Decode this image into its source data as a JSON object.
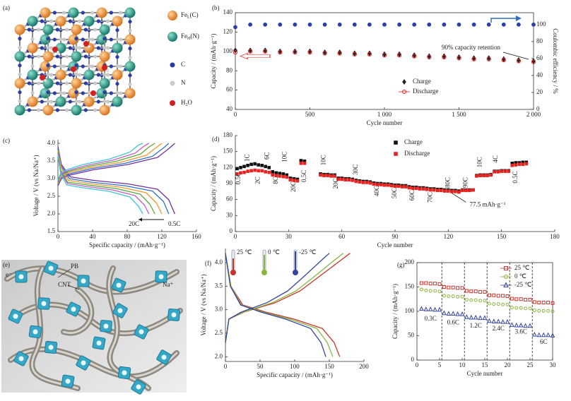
{
  "panels": [
    {
      "label": "(a)",
      "legend": [
        {
          "text": "Fe",
          "sub": "L",
          "after": "(C)"
        },
        {
          "text": "Fe",
          "sub": "H",
          "after": "(N)"
        },
        {
          "text": "C"
        },
        {
          "text": "N"
        },
        {
          "text": "H",
          "sub": "2",
          "after": "O"
        }
      ]
    },
    {
      "label": "(e)",
      "labels": [
        "PB",
        "CNT",
        "e⁻",
        "Na⁺"
      ]
    }
  ],
  "chart_data": [
    {
      "panel": "(b)",
      "type": "scatter",
      "x_label": "Cycle number",
      "y_label": "Capacity / (mAh·g⁻¹)",
      "y2_label": "Coulombic efficiency / %",
      "x": [
        0,
        100,
        200,
        300,
        400,
        500,
        600,
        700,
        800,
        900,
        1000,
        1100,
        1200,
        1300,
        1400,
        1500,
        1600,
        1700,
        1800,
        1900,
        2000
      ],
      "xlim": [
        0,
        2000
      ],
      "xticks": [
        0,
        500,
        {
          "value": 1000,
          "label": "1 000"
        },
        {
          "value": 1500,
          "label": "1 500"
        },
        {
          "value": 2000,
          "label": "2 000"
        }
      ],
      "ylim": [
        40,
        140
      ],
      "yticks": [
        40,
        60,
        80,
        100,
        120,
        140
      ],
      "y2lim": [
        0,
        114
      ],
      "y2ticks": [
        0,
        20,
        40,
        60,
        80,
        100
      ],
      "series": [
        {
          "name": "Charge",
          "color": "#222222",
          "marker": "diamond",
          "values": [
            101,
            101,
            101,
            100,
            100,
            100,
            99,
            99,
            98,
            98,
            97,
            97,
            96,
            95,
            95,
            94,
            93,
            93,
            92,
            91,
            90
          ]
        },
        {
          "name": "Discharge",
          "color": "#e8231f",
          "marker": "circle",
          "open": true,
          "values": [
            99,
            100,
            100,
            99,
            99,
            99,
            98,
            98,
            97,
            97,
            96,
            96,
            95,
            94,
            94,
            93,
            92,
            92,
            91,
            90,
            89
          ]
        },
        {
          "color": "#2c3fa8",
          "marker": "circle",
          "axis": "y2",
          "values": [
            97,
            100,
            100,
            100,
            100,
            100,
            100,
            100,
            100,
            100,
            100,
            100,
            100,
            100,
            100,
            100,
            100,
            100,
            100,
            100,
            100
          ]
        }
      ],
      "annotation": "90% capacity retention"
    },
    {
      "panel": "(c)",
      "type": "line",
      "x_label": "Specific capacity / (mAh·g⁻¹)",
      "y_label": "Voltage / V (vs Na/Na⁺)",
      "xlim": [
        0,
        160
      ],
      "xticks": [
        0,
        40,
        80,
        120,
        160
      ],
      "ylim": [
        1.5,
        4.1
      ],
      "yticks": [
        1.5,
        {
          "value": 2,
          "label": "2.0"
        },
        2.5,
        {
          "value": 3,
          "label": "3.0"
        },
        3.5,
        {
          "value": 4,
          "label": "4.0"
        }
      ],
      "series": [
        {
          "color": "#7030a0",
          "x": [
            0,
            4,
            14,
            41,
            81,
            115,
            128,
            135
          ],
          "values": [
            3.9,
            3.4,
            3.05,
            2.95,
            2.85,
            2.7,
            2.4,
            2.0
          ]
        },
        {
          "color": "#7030a0",
          "x": [
            0,
            4,
            14,
            41,
            81,
            115,
            128,
            135
          ],
          "values": [
            2.8,
            3.0,
            3.1,
            3.25,
            3.4,
            3.6,
            3.85,
            4.0
          ]
        },
        {
          "color": "#2f6fd0",
          "x": [
            0,
            4,
            13,
            38,
            77,
            109,
            122,
            128
          ],
          "values": [
            3.85,
            3.35,
            3.0,
            2.9,
            2.8,
            2.65,
            2.35,
            2.0
          ]
        },
        {
          "color": "#2f6fd0",
          "x": [
            0,
            4,
            13,
            38,
            77,
            109,
            122,
            128
          ],
          "values": [
            2.83,
            3.03,
            3.13,
            3.28,
            3.43,
            3.63,
            3.87,
            4.0
          ]
        },
        {
          "color": "#f0962c",
          "x": [
            0,
            4,
            12,
            36,
            72,
            102,
            114,
            120
          ],
          "values": [
            3.8,
            3.3,
            2.95,
            2.86,
            2.76,
            2.6,
            2.3,
            2.0
          ]
        },
        {
          "color": "#f0962c",
          "x": [
            0,
            4,
            12,
            36,
            72,
            102,
            114,
            120
          ],
          "values": [
            2.86,
            3.06,
            3.16,
            3.31,
            3.46,
            3.66,
            3.89,
            4.0
          ]
        },
        {
          "color": "#58a83a",
          "x": [
            0,
            3,
            11,
            34,
            67,
            95,
            106,
            112
          ],
          "values": [
            3.75,
            3.25,
            2.9,
            2.82,
            2.72,
            2.56,
            2.28,
            2.0
          ]
        },
        {
          "color": "#58a83a",
          "x": [
            0,
            3,
            11,
            34,
            67,
            95,
            106,
            112
          ],
          "values": [
            2.89,
            3.09,
            3.19,
            3.34,
            3.49,
            3.69,
            3.91,
            4.0
          ]
        },
        {
          "color": "#c25bc8",
          "x": [
            0,
            3,
            11,
            32,
            63,
            89,
            100,
            105
          ],
          "values": [
            3.7,
            3.2,
            2.86,
            2.78,
            2.68,
            2.52,
            2.25,
            2.0
          ]
        },
        {
          "color": "#c25bc8",
          "x": [
            0,
            3,
            11,
            32,
            63,
            89,
            100,
            105
          ],
          "values": [
            2.92,
            3.12,
            3.22,
            3.37,
            3.52,
            3.72,
            3.93,
            4.0
          ]
        },
        {
          "color": "#3cc8d8",
          "x": [
            0,
            3,
            10,
            29,
            59,
            83,
            93,
            98
          ],
          "values": [
            3.65,
            3.15,
            2.82,
            2.74,
            2.64,
            2.48,
            2.22,
            2.0
          ]
        },
        {
          "color": "#3cc8d8",
          "x": [
            0,
            3,
            10,
            29,
            59,
            83,
            93,
            98
          ],
          "values": [
            2.95,
            3.15,
            3.25,
            3.4,
            3.55,
            3.75,
            3.95,
            4.0
          ]
        }
      ],
      "annotations": [
        "20C",
        "0.5C"
      ]
    },
    {
      "panel": "(d)",
      "type": "scatter",
      "x_label": "Cycle number",
      "y_label": "Capacity / (mAh·g⁻¹)",
      "x": [
        1,
        3,
        5,
        7,
        9,
        11,
        13,
        15,
        17,
        19,
        21,
        23,
        25,
        27,
        29,
        31,
        33,
        35,
        37,
        39,
        48,
        50,
        52,
        54,
        56,
        58,
        60,
        62,
        64,
        66,
        68,
        70,
        72,
        74,
        76,
        78,
        80,
        82,
        84,
        86,
        88,
        90,
        92,
        94,
        96,
        98,
        100,
        102,
        104,
        106,
        108,
        110,
        112,
        114,
        116,
        118,
        120,
        122,
        124,
        126,
        128,
        130,
        132,
        134,
        136,
        138,
        140,
        142,
        144,
        146,
        148,
        150,
        152,
        154,
        156,
        158,
        160,
        162,
        164
      ],
      "xlim": [
        0,
        180
      ],
      "xticks": [
        0,
        30,
        60,
        90,
        120,
        150,
        180
      ],
      "ylim": [
        0,
        180
      ],
      "yticks": [
        0,
        30,
        60,
        90,
        120,
        150,
        180
      ],
      "series": [
        {
          "name": "Charge",
          "color": "#111111",
          "marker": "square",
          "values": [
            118,
            120,
            122,
            124,
            126,
            127,
            125,
            124,
            122,
            120,
            112,
            110,
            109,
            108,
            106,
            100,
            99,
            98,
            133,
            132,
            108,
            107,
            107,
            106,
            106,
            100,
            100,
            99,
            99,
            98,
            96,
            95,
            94,
            94,
            93,
            91,
            90,
            90,
            89,
            89,
            88,
            87,
            87,
            86,
            86,
            84,
            83,
            83,
            82,
            82,
            81,
            80,
            80,
            79,
            79,
            78,
            78,
            77,
            77,
            76,
            78,
            78,
            78,
            78,
            105,
            106,
            106,
            106,
            107,
            113,
            113,
            114,
            114,
            114,
            128,
            129,
            129,
            130,
            130
          ]
        },
        {
          "name": "Discharge",
          "color": "#e8231f",
          "marker": "square",
          "values": [
            108,
            110,
            111,
            113,
            114,
            115,
            114,
            114,
            112,
            111,
            106,
            105,
            104,
            103,
            102,
            97,
            96,
            95,
            128,
            128,
            106,
            105,
            105,
            104,
            104,
            98,
            98,
            97,
            97,
            96,
            94,
            93,
            92,
            92,
            91,
            89,
            88,
            88,
            87,
            87,
            86,
            85,
            85,
            84,
            84,
            82,
            81,
            81,
            80,
            80,
            79,
            78,
            78,
            77,
            77,
            76,
            76,
            75,
            75,
            74,
            77,
            77,
            77,
            78,
            104,
            105,
            105,
            105,
            106,
            112,
            112,
            113,
            113,
            113,
            124,
            125,
            126,
            126,
            127
          ]
        }
      ],
      "rate_labels": [
        "0.5C",
        "1C",
        "2C",
        "6C",
        "8C",
        "10C",
        "20C",
        "0.5C",
        "10C",
        "20C",
        "30C",
        "40C",
        "50C",
        "60C",
        "70C",
        "80C",
        "90C",
        "10C",
        "4C",
        "0.5C"
      ],
      "annotation": "77.5 mAh·g⁻¹"
    },
    {
      "panel": "(f)",
      "type": "line",
      "x_label": "Specific capacity / (mAh·g⁻¹)",
      "y_label": "Voltage / V (vs Na/Na⁺)",
      "xlim": [
        0,
        200
      ],
      "xticks": [
        0,
        50,
        100,
        150,
        200
      ],
      "ylim": [
        1.9,
        4.3
      ],
      "yticks": [
        {
          "value": 2,
          "label": "2.0"
        },
        2.5,
        {
          "value": 3,
          "label": "3.0"
        },
        3.5,
        {
          "value": 4,
          "label": "4.0"
        }
      ],
      "series": [
        {
          "name": "25 ℃",
          "color": "#c8342b",
          "x": [
            0,
            5,
            27,
            72,
            108,
            135,
            162,
            180
          ],
          "values": [
            2.3,
            2.8,
            2.95,
            3.15,
            3.4,
            3.7,
            4.0,
            4.2
          ]
        },
        {
          "color": "#c8342b",
          "x": [
            0,
            8,
            25,
            58,
            99,
            140,
            157,
            165
          ],
          "values": [
            4.2,
            3.5,
            3.1,
            2.95,
            2.8,
            2.6,
            2.3,
            2.0
          ]
        },
        {
          "name": "0 ℃",
          "color": "#8ab43c",
          "x": [
            0,
            5,
            26,
            68,
            102,
            128,
            153,
            170
          ],
          "values": [
            2.3,
            2.8,
            2.95,
            3.15,
            3.4,
            3.7,
            4.0,
            4.2
          ]
        },
        {
          "color": "#8ab43c",
          "x": [
            0,
            8,
            23,
            54,
            93,
            132,
            147,
            155
          ],
          "values": [
            4.2,
            3.5,
            3.1,
            2.95,
            2.8,
            2.6,
            2.3,
            2.0
          ]
        },
        {
          "name": "-25 ℃",
          "color": "#3445a0",
          "x": [
            0,
            5,
            23,
            60,
            90,
            113,
            135,
            150
          ],
          "values": [
            2.3,
            2.8,
            2.95,
            3.15,
            3.4,
            3.7,
            4.0,
            4.2
          ]
        },
        {
          "color": "#3445a0",
          "x": [
            0,
            7,
            22,
            51,
            87,
            123,
            138,
            145
          ],
          "values": [
            4.2,
            3.5,
            3.1,
            2.95,
            2.8,
            2.6,
            2.3,
            2.0
          ]
        }
      ]
    },
    {
      "panel": "(g)",
      "type": "scatter",
      "x_label": "Cycle number",
      "y_label": "Capacity / (mAh·g⁻¹)",
      "x": [
        1,
        2,
        3,
        4,
        5,
        6,
        7,
        8,
        9,
        10,
        11,
        12,
        13,
        14,
        15,
        16,
        17,
        18,
        19,
        20,
        21,
        22,
        23,
        24,
        25,
        26,
        27,
        28,
        29,
        30
      ],
      "xlim": [
        0,
        30
      ],
      "xticks": [
        0,
        5,
        10,
        15,
        20,
        25,
        30
      ],
      "ylim": [
        0,
        200
      ],
      "yticks": [
        0,
        50,
        100,
        150,
        200
      ],
      "series": [
        {
          "name": "25 ℃",
          "color": "#c8342b",
          "marker": "square",
          "open": true,
          "values": [
            158,
            158,
            157,
            157,
            156,
            150,
            149,
            149,
            148,
            148,
            142,
            141,
            141,
            140,
            140,
            133,
            133,
            132,
            132,
            131,
            126,
            125,
            125,
            124,
            124,
            119,
            118,
            118,
            118,
            117
          ]
        },
        {
          "name": "0 ℃",
          "color": "#8ab43c",
          "marker": "circle",
          "open": true,
          "values": [
            145,
            143,
            142,
            142,
            141,
            132,
            131,
            131,
            130,
            130,
            124,
            123,
            123,
            122,
            122,
            116,
            115,
            115,
            114,
            114,
            108,
            107,
            107,
            106,
            106,
            102,
            101,
            101,
            101,
            100
          ]
        },
        {
          "name": "-25 ℃",
          "color": "#3445a0",
          "marker": "triangle",
          "open": true,
          "values": [
            105,
            104,
            104,
            103,
            103,
            96,
            95,
            95,
            94,
            94,
            88,
            87,
            87,
            86,
            86,
            80,
            79,
            79,
            78,
            78,
            72,
            71,
            71,
            70,
            70,
            52,
            51,
            51,
            51,
            50
          ]
        }
      ],
      "rate_labels": [
        "0.3C",
        "0.6C",
        "1.2C",
        "2.4C",
        "3.6C",
        "6C"
      ]
    }
  ]
}
